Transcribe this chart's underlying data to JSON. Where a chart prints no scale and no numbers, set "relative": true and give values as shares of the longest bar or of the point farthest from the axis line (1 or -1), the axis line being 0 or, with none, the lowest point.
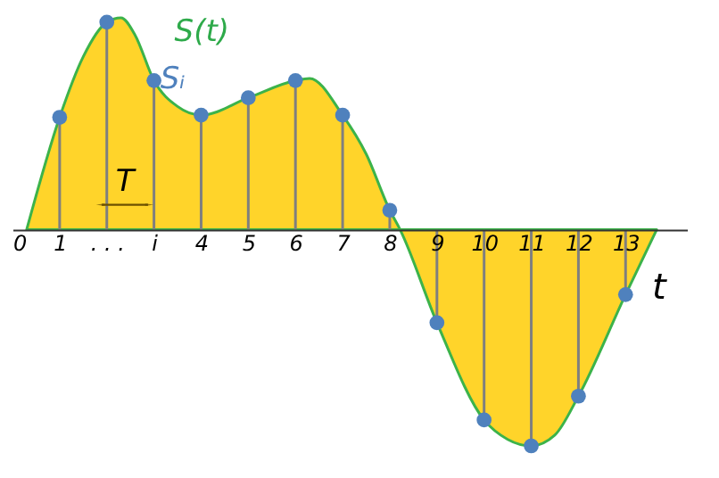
{
  "chart_data": {
    "type": "area",
    "relative": true,
    "xlabel": "t",
    "xlim": [
      0,
      14.3
    ],
    "xticks": [
      0,
      1,
      {
        "value": 2,
        "label": ". . ."
      },
      {
        "value": 3,
        "label": "i"
      },
      4,
      5,
      6,
      7,
      8,
      9,
      10,
      11,
      12,
      13
    ],
    "annotations": [
      "T"
    ],
    "grid": false,
    "series": [
      {
        "name": "S(t)",
        "color": "#ffd42a",
        "marker": "none",
        "x": [
          0.3,
          1,
          1.5,
          2,
          2.3,
          2.6,
          3,
          3.5,
          4,
          5,
          6,
          6.3,
          7,
          7.5,
          8,
          8.22,
          9,
          10,
          10.5,
          11,
          11.5,
          12,
          13,
          13.66
        ],
        "values": [
          0,
          0.52,
          0.8,
          0.96,
          0.98,
          0.9,
          0.69,
          0.57,
          0.53,
          0.61,
          0.69,
          0.7,
          0.53,
          0.35,
          0.09,
          0,
          -0.43,
          -0.88,
          -0.97,
          -1,
          -0.95,
          -0.77,
          -0.3,
          0
        ]
      },
      {
        "name": "Sᵢ",
        "type": "lollipop",
        "color": "#4f81bd",
        "marker": "circle",
        "x": [
          1,
          2,
          3,
          4,
          5,
          6,
          7,
          8,
          9,
          10,
          11,
          12,
          13
        ],
        "values": [
          0.52,
          0.96,
          0.69,
          0.53,
          0.61,
          0.69,
          0.53,
          0.09,
          -0.43,
          -0.88,
          -1,
          -0.77,
          -0.3
        ]
      }
    ]
  }
}
